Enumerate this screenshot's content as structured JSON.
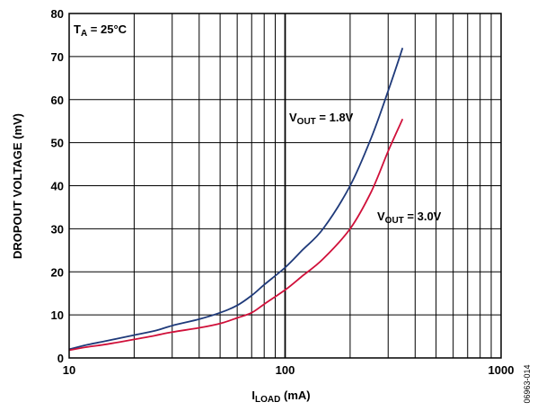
{
  "chart_data": {
    "type": "line",
    "xlabel": {
      "main": "I",
      "sub": "LOAD",
      "rest": " (mA)"
    },
    "ylabel": "DROPOUT VOLTAGE (mV)",
    "xscale": "log",
    "xlim": [
      10,
      1000
    ],
    "ylim": [
      0,
      80
    ],
    "grid": true,
    "x_tick_labels": [
      "10",
      "100",
      "1000"
    ],
    "y_tick_labels": [
      "0",
      "10",
      "20",
      "30",
      "40",
      "50",
      "60",
      "70",
      "80"
    ],
    "annotation": {
      "main": "T",
      "sub": "A",
      "rest": " = 25°C"
    },
    "figure_id": "06963-014",
    "series": [
      {
        "label": {
          "main": "V",
          "sub": "OUT",
          "rest": " = 1.8V"
        },
        "color": "#1f3a7a",
        "x": [
          10,
          12,
          15,
          20,
          25,
          30,
          40,
          50,
          60,
          70,
          80,
          100,
          120,
          150,
          200,
          250,
          300,
          350
        ],
        "y": [
          2,
          3,
          4,
          5.3,
          6.3,
          7.5,
          9,
          10.5,
          12.2,
          14.5,
          17,
          21,
          25,
          30,
          40,
          51,
          62,
          72
        ]
      },
      {
        "label": {
          "main": "V",
          "sub": "OUT",
          "rest": " = 3.0V"
        },
        "color": "#d0103a",
        "x": [
          10,
          12,
          15,
          20,
          25,
          30,
          40,
          50,
          60,
          70,
          80,
          100,
          120,
          150,
          200,
          250,
          300,
          350
        ],
        "y": [
          1.8,
          2.5,
          3.2,
          4.3,
          5.2,
          6,
          7,
          8,
          9.3,
          10.5,
          12.5,
          15.8,
          19,
          23,
          30,
          38.5,
          48,
          55.5
        ]
      }
    ]
  }
}
